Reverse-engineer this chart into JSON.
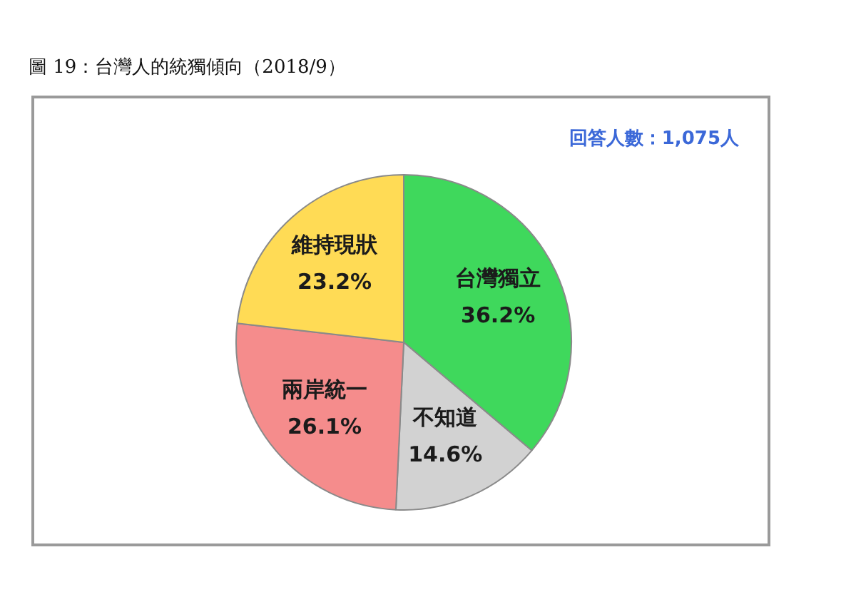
{
  "chart_data": {
    "type": "pie",
    "title": "圖 19：台灣人的統獨傾向（2018/9）",
    "annotations": [
      "回答人數：1,075人"
    ],
    "categories": [
      "台灣獨立",
      "不知道",
      "兩岸統一",
      "維持現狀"
    ],
    "values": [
      36.2,
      14.6,
      26.1,
      23.2
    ],
    "colors": [
      "#3fd85c",
      "#d2d2d2",
      "#f58c8c",
      "#ffdb55"
    ],
    "value_labels": [
      "36.2%",
      "14.6%",
      "26.1%",
      "23.2%"
    ],
    "legend": false
  }
}
